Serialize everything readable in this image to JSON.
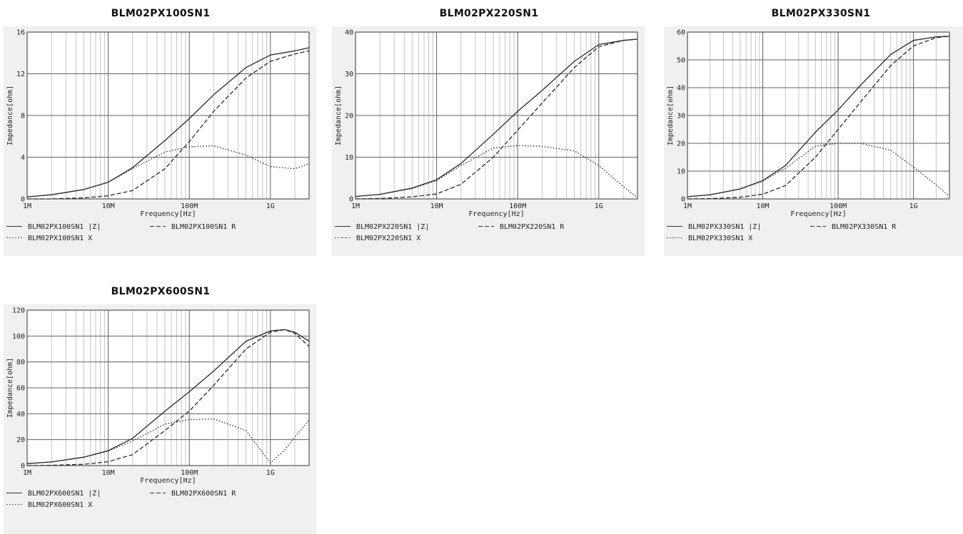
{
  "chart_data": [
    {
      "type": "line",
      "title": "BLM02PX100SN1",
      "xlabel": "Frequency[Hz]",
      "ylabel": "Impedance[ohm]",
      "xscale": "log",
      "xlim": [
        1000000,
        3000000000
      ],
      "ylim": [
        0,
        16
      ],
      "xticks": [
        1000000,
        10000000,
        100000000,
        1000000000
      ],
      "xticklabels": [
        "1M",
        "10M",
        "100M",
        "1G"
      ],
      "yticks": [
        0,
        4,
        8,
        12,
        16
      ],
      "yticklabels": [
        "0",
        "4",
        "8",
        "12",
        "16"
      ],
      "grid": true,
      "x": [
        1000000,
        2000000,
        5000000,
        10000000,
        20000000,
        50000000,
        100000000,
        200000000,
        500000000,
        1000000000,
        2000000000,
        3000000000
      ],
      "series": [
        {
          "name": "BLM02PX100SN1 |Z|",
          "style": "solid",
          "values": [
            0.2,
            0.4,
            0.9,
            1.6,
            3.0,
            5.6,
            7.7,
            10.0,
            12.6,
            13.8,
            14.2,
            14.5
          ]
        },
        {
          "name": "BLM02PX100SN1 R",
          "style": "dashed",
          "values": [
            0.0,
            0.0,
            0.1,
            0.3,
            0.8,
            2.9,
            5.5,
            8.4,
            11.6,
            13.2,
            13.9,
            14.2
          ]
        },
        {
          "name": "BLM02PX100SN1 X",
          "style": "dotted",
          "values": [
            0.2,
            0.4,
            0.9,
            1.6,
            2.9,
            4.5,
            5.0,
            5.1,
            4.2,
            3.1,
            2.9,
            3.4
          ]
        }
      ],
      "legend": [
        "BLM02PX100SN1 |Z|",
        "BLM02PX100SN1 R",
        "BLM02PX100SN1 X"
      ]
    },
    {
      "type": "line",
      "title": "BLM02PX220SN1",
      "xlabel": "Frequency[Hz]",
      "ylabel": "Impedance[ohm]",
      "xscale": "log",
      "xlim": [
        1000000,
        3000000000
      ],
      "ylim": [
        0,
        40
      ],
      "xticks": [
        1000000,
        10000000,
        100000000,
        1000000000
      ],
      "xticklabels": [
        "1M",
        "10M",
        "100M",
        "1G"
      ],
      "yticks": [
        0,
        10,
        20,
        30,
        40
      ],
      "yticklabels": [
        "0",
        "10",
        "20",
        "30",
        "40"
      ],
      "grid": true,
      "x": [
        1000000,
        2000000,
        5000000,
        10000000,
        20000000,
        50000000,
        100000000,
        200000000,
        500000000,
        1000000000,
        2000000000,
        3000000000
      ],
      "series": [
        {
          "name": "BLM02PX220SN1 |Z|",
          "style": "solid",
          "values": [
            0.6,
            1.1,
            2.6,
            4.6,
            8.5,
            15.5,
            21.0,
            26.0,
            33.0,
            37.0,
            38.0,
            38.3
          ]
        },
        {
          "name": "BLM02PX220SN1 R",
          "style": "dashed",
          "values": [
            0.0,
            0.1,
            0.5,
            1.2,
            3.5,
            10.0,
            16.5,
            23.0,
            31.5,
            36.5,
            38.0,
            38.3
          ]
        },
        {
          "name": "BLM02PX220SN1 X",
          "style": "dotted",
          "values": [
            0.6,
            1.1,
            2.5,
            4.4,
            8.0,
            12.2,
            12.8,
            12.6,
            11.5,
            8.0,
            3.0,
            0.3
          ]
        }
      ],
      "legend": [
        "BLM02PX220SN1 |Z|",
        "BLM02PX220SN1 R",
        "BLM02PX220SN1 X"
      ]
    },
    {
      "type": "line",
      "title": "BLM02PX330SN1",
      "xlabel": "Frequency[Hz]",
      "ylabel": "Impedance[ohm]",
      "xscale": "log",
      "xlim": [
        1000000,
        3000000000
      ],
      "ylim": [
        0,
        60
      ],
      "xticks": [
        1000000,
        10000000,
        100000000,
        1000000000
      ],
      "xticklabels": [
        "1M",
        "10M",
        "100M",
        "1G"
      ],
      "yticks": [
        0,
        10,
        20,
        30,
        40,
        50,
        60
      ],
      "yticklabels": [
        "0",
        "10",
        "20",
        "30",
        "40",
        "50",
        "60"
      ],
      "grid": true,
      "x": [
        1000000,
        2000000,
        5000000,
        10000000,
        20000000,
        50000000,
        100000000,
        200000000,
        500000000,
        1000000000,
        2000000000,
        3000000000
      ],
      "series": [
        {
          "name": "BLM02PX330SN1 |Z|",
          "style": "solid",
          "values": [
            0.8,
            1.5,
            3.6,
            6.6,
            12.0,
            24.0,
            32.0,
            41.0,
            52.0,
            57.0,
            58.3,
            58.5
          ]
        },
        {
          "name": "BLM02PX330SN1 R",
          "style": "dashed",
          "values": [
            0.0,
            0.1,
            0.6,
            1.7,
            4.8,
            15.0,
            25.0,
            35.0,
            48.0,
            55.0,
            58.0,
            58.5
          ]
        },
        {
          "name": "BLM02PX330SN1 X",
          "style": "dotted",
          "values": [
            0.8,
            1.5,
            3.5,
            6.4,
            11.0,
            19.0,
            20.0,
            20.0,
            17.5,
            11.5,
            5.0,
            1.0
          ]
        }
      ],
      "legend": [
        "BLM02PX330SN1 |Z|",
        "BLM02PX330SN1 R",
        "BLM02PX330SN1 X"
      ]
    },
    {
      "type": "line",
      "title": "BLM02PX600SN1",
      "xlabel": "Frequency[Hz]",
      "ylabel": "Impedance[ohm]",
      "xscale": "log",
      "xlim": [
        1000000,
        3000000000
      ],
      "ylim": [
        0,
        120
      ],
      "xticks": [
        1000000,
        10000000,
        100000000,
        1000000000
      ],
      "xticklabels": [
        "1M",
        "10M",
        "100M",
        "1G"
      ],
      "yticks": [
        0,
        20,
        40,
        60,
        80,
        100,
        120
      ],
      "yticklabels": [
        "0",
        "20",
        "40",
        "60",
        "80",
        "100",
        "120"
      ],
      "grid": true,
      "x": [
        1000000,
        2000000,
        5000000,
        10000000,
        20000000,
        50000000,
        100000000,
        200000000,
        500000000,
        1000000000,
        1500000000,
        2000000000,
        3000000000
      ],
      "series": [
        {
          "name": "BLM02PX600SN1 |Z|",
          "style": "solid",
          "values": [
            1.5,
            2.8,
            6.5,
            11.5,
            21.0,
            42.0,
            57.0,
            73.0,
            96.0,
            104.0,
            105.0,
            103.0,
            96.0
          ]
        },
        {
          "name": "BLM02PX600SN1 R",
          "style": "dashed",
          "values": [
            0.0,
            0.2,
            1.0,
            3.0,
            8.5,
            27.0,
            42.0,
            62.0,
            90.0,
            103.0,
            105.0,
            102.0,
            92.0
          ]
        },
        {
          "name": "BLM02PX600SN1 X",
          "style": "dotted",
          "values": [
            1.5,
            2.8,
            6.4,
            11.2,
            19.0,
            32.0,
            35.5,
            36.0,
            27.0,
            2.0,
            12.0,
            22.0,
            35.0
          ]
        }
      ],
      "legend": [
        "BLM02PX600SN1 |Z|",
        "BLM02PX600SN1 R",
        "BLM02PX600SN1 X"
      ]
    }
  ]
}
